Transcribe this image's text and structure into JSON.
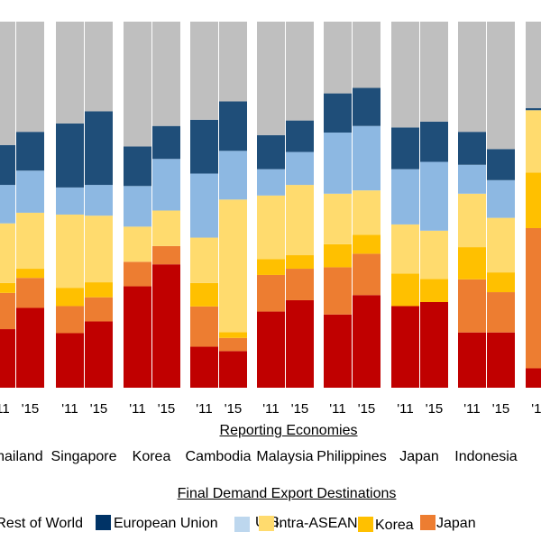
{
  "chart_data": {
    "type": "bar",
    "stacked": true,
    "percent_stacked": true,
    "xlabel": "Reporting Economies",
    "legend_title": "Final Demand Export Destinations",
    "legend_placement": "bottom",
    "grid": false,
    "ylim": [
      0,
      100
    ],
    "groups": [
      "Thailand",
      "Singapore",
      "Korea",
      "Cambodia",
      "Malaysia",
      "Philippines",
      "Japan",
      "Indonesia",
      ""
    ],
    "years": [
      "'11",
      "'15"
    ],
    "series": [
      {
        "name": "",
        "color": "#c00000",
        "values": [
          [
            16.0,
            21.8
          ],
          [
            14.9,
            18.1
          ],
          [
            27.7,
            33.7
          ],
          [
            11.2,
            10.0
          ],
          [
            20.8,
            23.9
          ],
          [
            20.0,
            25.3
          ],
          [
            22.3,
            23.4
          ],
          [
            15.1,
            15.1
          ],
          [
            5.3,
            null
          ]
        ]
      },
      {
        "name": "Japan",
        "color": "#ed7d31",
        "values": [
          [
            9.9,
            8.2
          ],
          [
            7.4,
            6.6
          ],
          [
            6.7,
            5.0
          ],
          [
            11.0,
            3.6
          ],
          [
            10.0,
            8.6
          ],
          [
            12.9,
            11.3
          ],
          [
            0,
            0
          ],
          [
            14.5,
            11.0
          ],
          [
            38.3,
            null
          ]
        ]
      },
      {
        "name": "Korea",
        "color": "#ffc000",
        "values": [
          [
            2.7,
            2.5
          ],
          [
            5.0,
            4.1
          ],
          [
            0,
            0
          ],
          [
            6.4,
            1.6
          ],
          [
            4.3,
            3.7
          ],
          [
            6.3,
            5.2
          ],
          [
            8.9,
            6.3
          ],
          [
            8.8,
            5.4
          ],
          [
            15.2,
            null
          ]
        ]
      },
      {
        "name": "Intra-ASEAN",
        "color": "#ffdb6e",
        "values": [
          [
            16.3,
            15.3
          ],
          [
            20.0,
            18.2
          ],
          [
            9.6,
            9.7
          ],
          [
            12.4,
            36.2
          ],
          [
            17.4,
            19.2
          ],
          [
            13.8,
            12.1
          ],
          [
            13.4,
            13.2
          ],
          [
            14.6,
            14.9
          ],
          [
            17.0,
            null
          ]
        ]
      },
      {
        "name": "U.S.",
        "color": "#8db8e2",
        "values": [
          [
            10.5,
            11.5
          ],
          [
            7.4,
            8.4
          ],
          [
            11.1,
            14.1
          ],
          [
            17.5,
            13.3
          ],
          [
            7.2,
            9.0
          ],
          [
            16.7,
            17.6
          ],
          [
            15.1,
            18.8
          ],
          [
            7.9,
            10.3
          ],
          [
            0,
            null
          ]
        ]
      },
      {
        "name": "European Union",
        "color": "#1f4e79",
        "values": [
          [
            10.9,
            10.6
          ],
          [
            17.5,
            20.1
          ],
          [
            10.8,
            9.0
          ],
          [
            14.7,
            13.5
          ],
          [
            9.3,
            8.6
          ],
          [
            10.7,
            10.4
          ],
          [
            11.4,
            11.0
          ],
          [
            9.0,
            8.5
          ],
          [
            0.6,
            null
          ]
        ]
      },
      {
        "name": "Rest of World",
        "color": "#bfbfbf",
        "values": [
          [
            33.7,
            30.1
          ],
          [
            27.8,
            24.5
          ],
          [
            34.1,
            28.5
          ],
          [
            26.8,
            21.8
          ],
          [
            31.0,
            27.0
          ],
          [
            19.6,
            18.1
          ],
          [
            28.9,
            27.3
          ],
          [
            30.1,
            34.8
          ],
          [
            23.6,
            null
          ]
        ]
      }
    ]
  },
  "legend": [
    {
      "label": "Rest of World",
      "color": "#bfbfbf"
    },
    {
      "label": "European Union",
      "color": "#003366"
    },
    {
      "label": "U.S.",
      "color": "#bdd7ee"
    },
    {
      "label": "Intra-ASEAN",
      "color": "#ffdb6e"
    },
    {
      "label": "Korea",
      "color": "#ffc000"
    },
    {
      "label": "Japan",
      "color": "#ed7d31"
    }
  ]
}
